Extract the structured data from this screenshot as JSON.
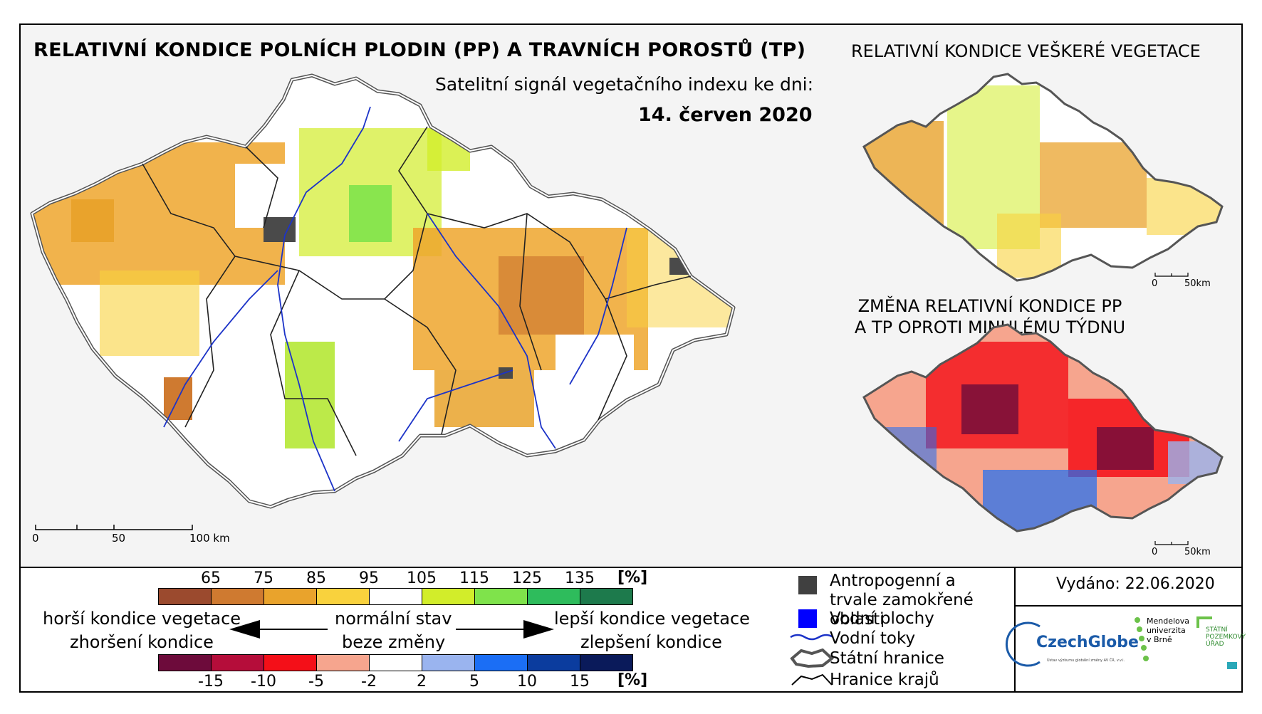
{
  "title": "RELATIVNÍ KONDICE POLNÍCH PLODIN (PP) A TRAVNÍCH POROSTŮ (TP)",
  "subtitle": "Satelitní signál vegetačního indexu ke dni:",
  "date": "14. červen 2020",
  "side_map_1": {
    "title": "RELATIVNÍ KONDICE VEŠKERÉ VEGETACE",
    "scale": [
      "0",
      "50km"
    ]
  },
  "side_map_2": {
    "title": "ZMĚNA RELATIVNÍ KONDICE PP A TP OPROTI MINULÉMU TÝDNU",
    "scale": [
      "0",
      "50km"
    ]
  },
  "main_scale": [
    "0",
    "50",
    "100 km"
  ],
  "legend": {
    "condition_ticks": [
      "65",
      "75",
      "85",
      "95",
      "105",
      "115",
      "125",
      "135"
    ],
    "condition_unit": "[%]",
    "condition_colors": [
      "#9b4a2e",
      "#cf7a30",
      "#e9a32c",
      "#f9d23d",
      "#ffffff",
      "#d2ed2a",
      "#7fe34b",
      "#2ebc5c",
      "#1d7a4c"
    ],
    "change_ticks": [
      "-15",
      "-10",
      "-5",
      "-2",
      "2",
      "5",
      "10",
      "15"
    ],
    "change_unit": "[%]",
    "change_colors": [
      "#6d0b3b",
      "#b50d3a",
      "#f40f18",
      "#f6a58e",
      "#ffffff",
      "#9ab4ef",
      "#1b6ef5",
      "#0b3c9e",
      "#0a1a5a"
    ],
    "worse_1": "horší kondice vegetace",
    "worse_2": "zhoršení kondice",
    "normal_1": "normální stav",
    "normal_2": "beze změny",
    "better_1": "lepší kondice vegetace",
    "better_2": "zlepšení kondice"
  },
  "map_legend": [
    {
      "label": "Antropogenní a trvale zamokřené oblasti",
      "icon": "gray-square-icon",
      "color": "#404040"
    },
    {
      "label": "Vodní plochy",
      "icon": "blue-square-icon",
      "color": "#0000ff"
    },
    {
      "label": "Vodní toky",
      "icon": "river-line-icon",
      "color": "#1c33c8"
    },
    {
      "label": "Státní hranice",
      "icon": "state-border-icon",
      "color": "#555555"
    },
    {
      "label": "Hranice krajů",
      "icon": "region-border-icon",
      "color": "#000000"
    }
  ],
  "issued": "Vydáno: 22.06.2020",
  "logos": {
    "czechglobe": "CzechGlobe",
    "czechglobe_sub": "Ústav výzkumu globální změny AV ČR, v.v.i.",
    "mendelu": "Mendelova\nuniverzita\nv Brně",
    "spu": "STÁTNÍ\nPOZEMKOVÝ\nÚŘAD"
  }
}
